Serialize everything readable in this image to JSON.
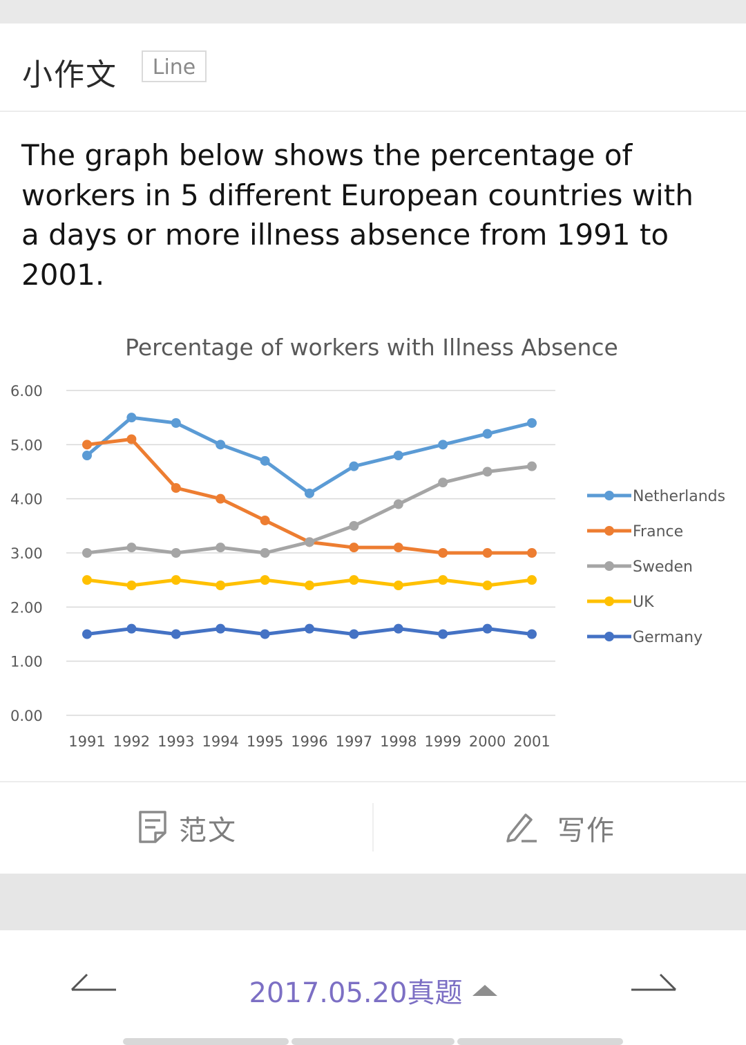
{
  "header": {
    "title": "小作文",
    "tag": "Line"
  },
  "prompt": "The graph below shows the percentage of workers in 5 different European countries with a days or more illness absence from 1991 to 2001.",
  "chart_data": {
    "type": "line",
    "title": "Percentage of workers with Illness Absence",
    "x": [
      "1991",
      "1992",
      "1993",
      "1994",
      "1995",
      "1996",
      "1997",
      "1998",
      "1999",
      "2000",
      "2001"
    ],
    "y_ticks": [
      "0.00",
      "1.00",
      "2.00",
      "3.00",
      "4.00",
      "5.00",
      "6.00"
    ],
    "ylim": [
      0,
      6
    ],
    "grid": true,
    "legend_position": "right",
    "series": [
      {
        "name": "Netherlands",
        "color": "#5b9bd5",
        "values": [
          4.8,
          5.5,
          5.4,
          5.0,
          4.7,
          4.1,
          4.6,
          4.8,
          5.0,
          5.2,
          5.4
        ]
      },
      {
        "name": "France",
        "color": "#ed7d31",
        "values": [
          5.0,
          5.1,
          4.2,
          4.0,
          3.6,
          3.2,
          3.1,
          3.1,
          3.0,
          3.0,
          3.0
        ]
      },
      {
        "name": "Sweden",
        "color": "#a5a5a5",
        "values": [
          3.0,
          3.1,
          3.0,
          3.1,
          3.0,
          3.2,
          3.5,
          3.9,
          4.3,
          4.5,
          4.6
        ]
      },
      {
        "name": "UK",
        "color": "#ffc000",
        "values": [
          2.5,
          2.4,
          2.5,
          2.4,
          2.5,
          2.4,
          2.5,
          2.4,
          2.5,
          2.4,
          2.5
        ]
      },
      {
        "name": "Germany",
        "color": "#4472c4",
        "values": [
          1.5,
          1.6,
          1.5,
          1.6,
          1.5,
          1.6,
          1.5,
          1.6,
          1.5,
          1.6,
          1.5
        ]
      }
    ]
  },
  "actions": {
    "model_essay": "范文",
    "write": "写作"
  },
  "footer": {
    "date_label": "2017.05.20真题"
  },
  "colors": {
    "accent": "#7c6fc4"
  },
  "icons": {
    "model_essay": "document-icon",
    "write": "pencil-icon",
    "prev": "arrow-left-icon",
    "next": "arrow-right-icon",
    "expand": "caret-up-icon"
  }
}
